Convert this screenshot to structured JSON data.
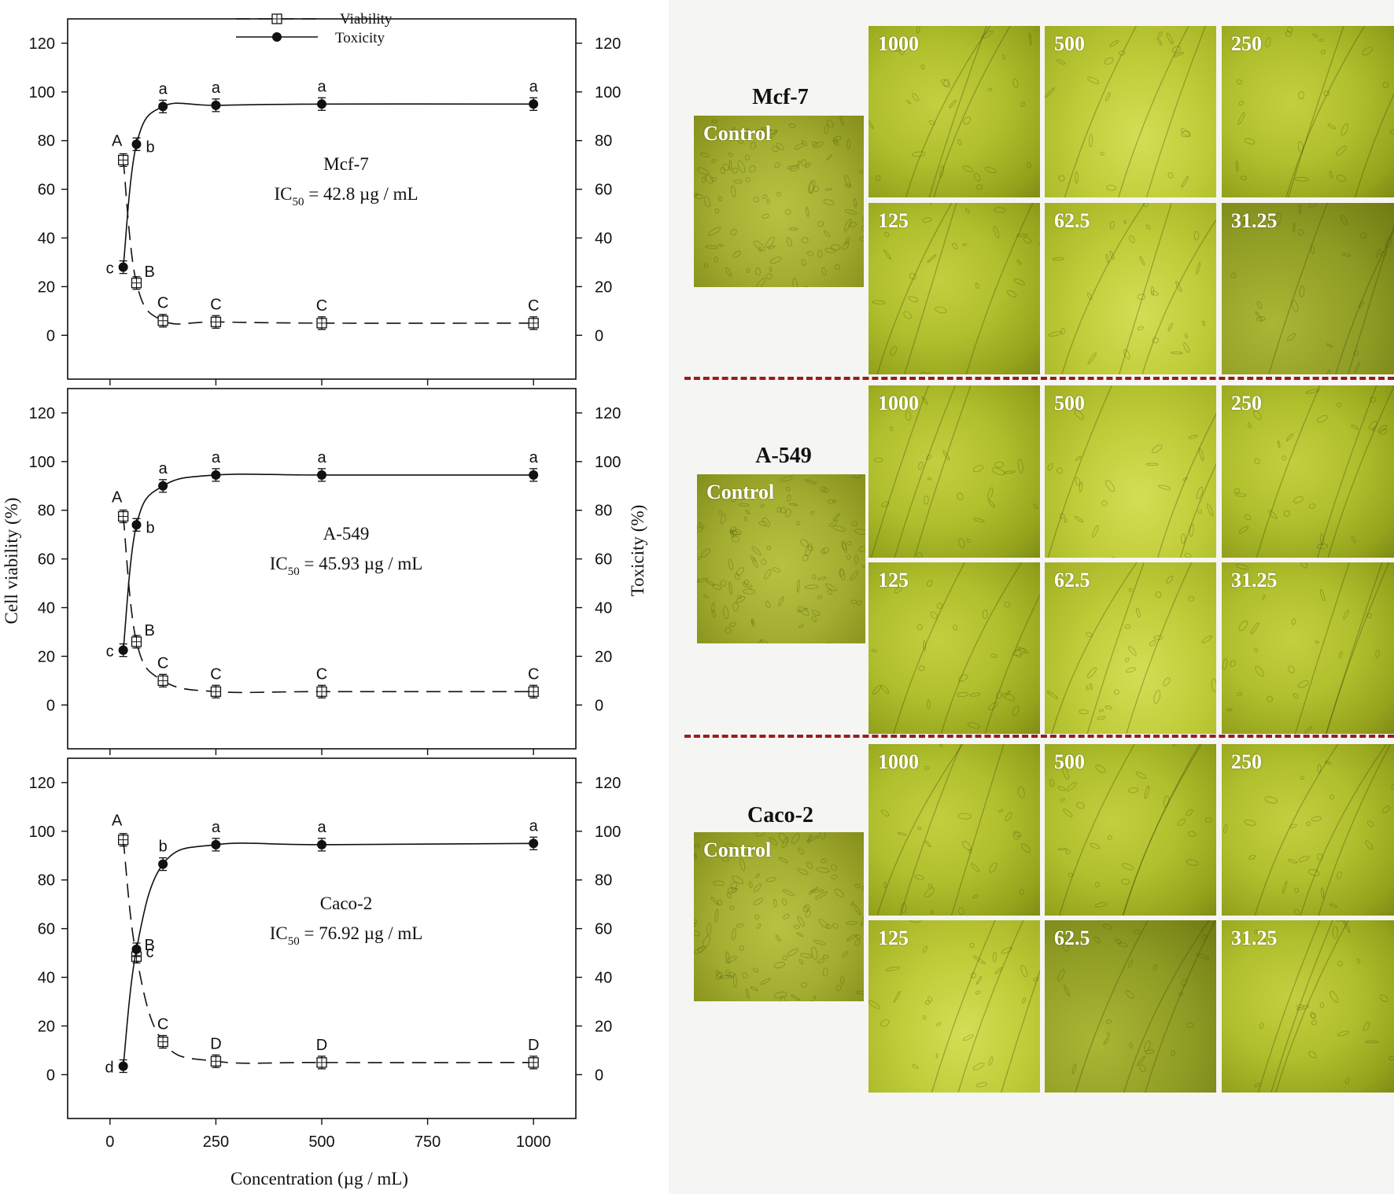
{
  "figure": {
    "legend": {
      "viability": "Viability",
      "toxicity": "Toxicity"
    },
    "y_left_label": "Cell viability (%)",
    "y_right_label": "Toxicity (%)",
    "x_label": "Concentration (µg / mL)",
    "y_ticks": [
      "120",
      "100",
      "80",
      "60",
      "40",
      "20",
      "0"
    ],
    "x_ticks": [
      "0",
      "250",
      "500",
      "750",
      "1000"
    ],
    "colors": {
      "line": "#111111",
      "divider": "#9b1c1c",
      "micro_base": "#b0bf2d"
    }
  },
  "chart_data": [
    {
      "type": "line",
      "cell_line": "Mcf-7",
      "ic50_prefix": "IC",
      "ic50_sub": "50",
      "ic50_value": " = 42.8 µg / mL",
      "x": [
        31.25,
        62.5,
        125,
        250,
        500,
        1000
      ],
      "xlim": [
        -100,
        1100
      ],
      "ylim": [
        -18,
        130
      ],
      "series": [
        {
          "name": "Viability",
          "style": "dashed",
          "marker": "square-cross",
          "values": [
            72,
            21.5,
            6,
            5.5,
            5,
            5
          ],
          "letters": [
            "A",
            "B",
            "C",
            "C",
            "C",
            "C"
          ]
        },
        {
          "name": "Toxicity",
          "style": "solid",
          "marker": "circle",
          "values": [
            28,
            78.5,
            94,
            94.5,
            95,
            95
          ],
          "letters": [
            "c",
            "b",
            "a",
            "a",
            "a",
            "a"
          ]
        }
      ]
    },
    {
      "type": "line",
      "cell_line": "A-549",
      "ic50_prefix": "IC",
      "ic50_sub": "50",
      "ic50_value": " = 45.93 µg / mL",
      "x": [
        31.25,
        62.5,
        125,
        250,
        500,
        1000
      ],
      "xlim": [
        -100,
        1100
      ],
      "ylim": [
        -18,
        130
      ],
      "series": [
        {
          "name": "Viability",
          "style": "dashed",
          "marker": "square-cross",
          "values": [
            77.5,
            26,
            10,
            5.5,
            5.5,
            5.5
          ],
          "letters": [
            "A",
            "B",
            "C",
            "C",
            "C",
            "C"
          ]
        },
        {
          "name": "Toxicity",
          "style": "solid",
          "marker": "circle",
          "values": [
            22.5,
            74,
            90,
            94.5,
            94.5,
            94.5
          ],
          "letters": [
            "c",
            "b",
            "a",
            "a",
            "a",
            "a"
          ]
        }
      ]
    },
    {
      "type": "line",
      "cell_line": "Caco-2",
      "ic50_prefix": "IC",
      "ic50_sub": "50",
      "ic50_value": " = 76.92 µg / mL",
      "x": [
        31.25,
        62.5,
        125,
        250,
        500,
        1000
      ],
      "xlim": [
        -100,
        1100
      ],
      "ylim": [
        -18,
        130
      ],
      "series": [
        {
          "name": "Viability",
          "style": "dashed",
          "marker": "square-cross",
          "values": [
            96.5,
            48.5,
            13.5,
            5.5,
            5,
            5
          ],
          "letters": [
            "A",
            "B",
            "C",
            "D",
            "D",
            "D"
          ]
        },
        {
          "name": "Toxicity",
          "style": "solid",
          "marker": "circle",
          "values": [
            3.5,
            51.5,
            86.5,
            94.5,
            94.5,
            95
          ],
          "letters": [
            "d",
            "c",
            "b",
            "a",
            "a",
            "a"
          ]
        }
      ]
    }
  ],
  "micrographs": {
    "control_label": "Control",
    "labels": [
      "1000",
      "500",
      "250",
      "125",
      "62.5",
      "31.25"
    ],
    "groups": [
      {
        "title": "Mcf-7"
      },
      {
        "title": "A-549"
      },
      {
        "title": "Caco-2"
      }
    ]
  }
}
